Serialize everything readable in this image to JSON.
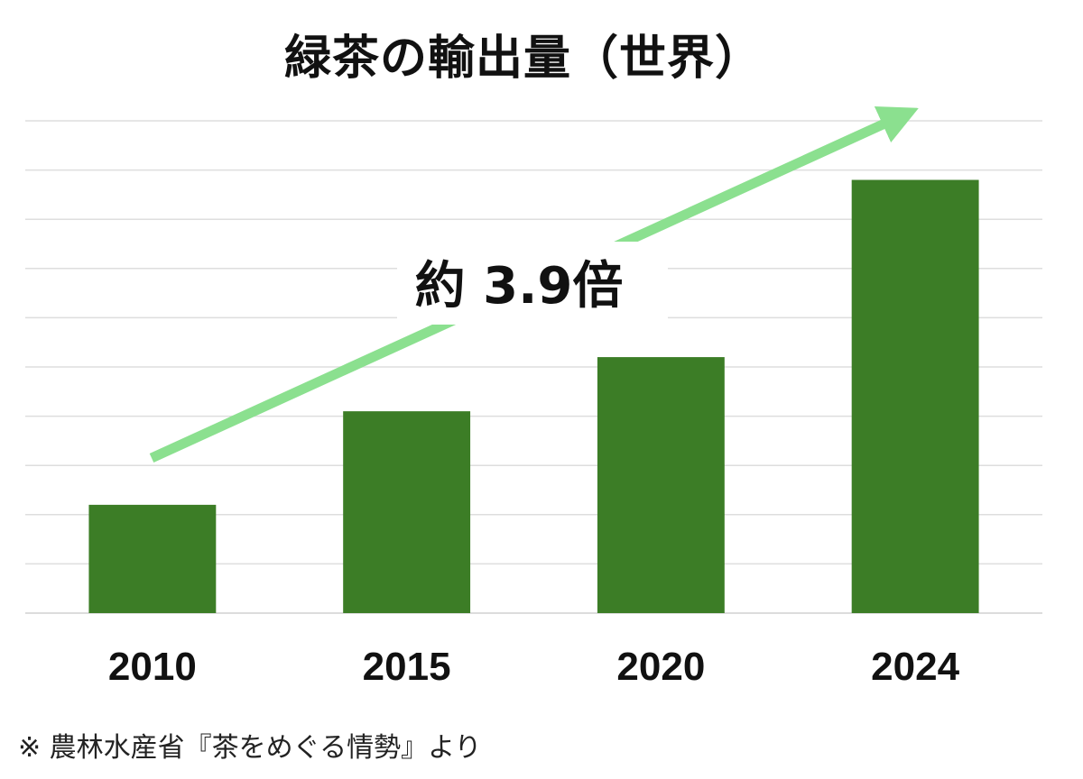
{
  "chart_data": {
    "type": "bar",
    "title": "緑茶の輸出量（世界）",
    "categories": [
      "2010",
      "2015",
      "2020",
      "2024"
    ],
    "values": [
      2.2,
      4.1,
      5.2,
      8.8
    ],
    "ylim": [
      0,
      10
    ],
    "grid": true,
    "bar_color": "#3c7d26",
    "arrow_color": "#8be08f",
    "annotation": "約 3.9倍",
    "source": "※ 農林水産省『茶をめぐる情勢』より"
  }
}
